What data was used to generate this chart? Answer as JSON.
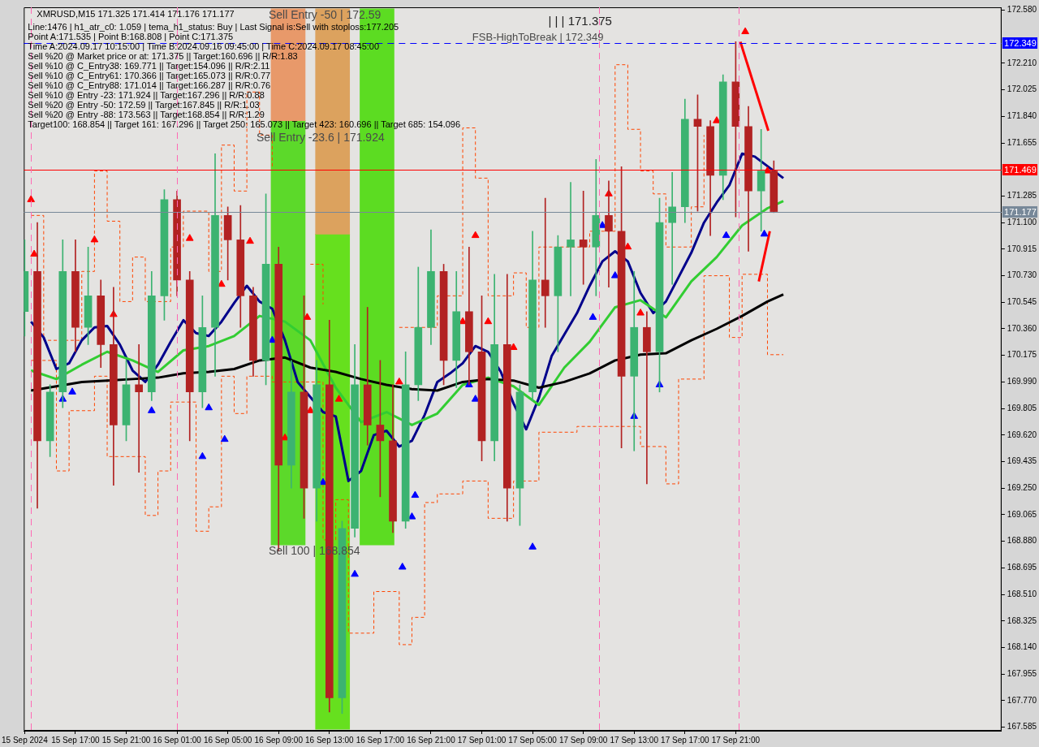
{
  "chart_data": {
    "type": "candlestick",
    "title": "XMRUSD,M15 171.325 171.414 171.176 171.177",
    "subtitle": "Line:1476 | h1_atr_c0: 1.059 | tema_h1_status: Buy | Last Signal is:Sell with stoploss:177.205\nPoint A:171.535 | Point B:168.808 | Point C:171.375\nTime A:2024.09.17 10:15:00 | Time B:2024.09.16 09:45:00 | Time C:2024.09.17 08:45:00\nSell %20 @ Market price or at: 171.375 || Target:160.696 || R/R:1.83\nSell %10 @ C_Entry38: 169.771 || Target:154.096 || R/R:2.11\nSell %10 @ C_Entry61: 170.366 || Target:165.073 || R/R:0.77\nSell %10 @ C_Entry88: 171.014 || Target:166.287 || R/R:0.76\nSell %10 @ Entry -23: 171.924 || Target:167.296 || R/R:0.88\nSell %20 @ Entry -50: 172.59 || Target:167.845 || R/R:1.03\nSell %20 @ Entry -88: 173.563 || Target:168.854 || R/R:1.29\nTarget100: 168.854 || Target 161: 167.296 || Target 250: 165.073 || Target 423: 160.696 || Target 685: 154.096",
    "annotations": [
      {
        "text": "Sell Entry -50 | 172.59",
        "x": "2024-09-16T09:45",
        "y": 172.59
      },
      "Sell Entry -23.6 | 171.924",
      {
        "text": "Sell 100 | 168.854",
        "x": "2024-09-16T09:45",
        "y": 168.854
      },
      "| | | 171.375",
      {
        "text": "FSB-HighToBreak | 172.349",
        "y": 172.349
      }
    ],
    "x": [
      "2024-09-15T13:00",
      "2024-09-15T14:00",
      "2024-09-15T15:00",
      "2024-09-15T16:00",
      "2024-09-15T17:00",
      "2024-09-15T18:00",
      "2024-09-15T19:00",
      "2024-09-15T20:00",
      "2024-09-15T21:00",
      "2024-09-15T22:00",
      "2024-09-15T23:00",
      "2024-09-16T00:00",
      "2024-09-16T01:00",
      "2024-09-16T02:00",
      "2024-09-16T03:00",
      "2024-09-16T04:00",
      "2024-09-16T05:00",
      "2024-09-16T06:00",
      "2024-09-16T07:00",
      "2024-09-16T08:00",
      "2024-09-16T09:00",
      "2024-09-16T10:00",
      "2024-09-16T11:00",
      "2024-09-16T12:00",
      "2024-09-16T13:00",
      "2024-09-16T14:00",
      "2024-09-16T15:00",
      "2024-09-16T16:00",
      "2024-09-16T17:00",
      "2024-09-16T18:00",
      "2024-09-16T19:00",
      "2024-09-16T20:00",
      "2024-09-16T21:00",
      "2024-09-16T22:00",
      "2024-09-16T23:00",
      "2024-09-17T00:00",
      "2024-09-17T01:00",
      "2024-09-17T02:00",
      "2024-09-17T03:00",
      "2024-09-17T04:00",
      "2024-09-17T05:00",
      "2024-09-17T06:00",
      "2024-09-17T07:00",
      "2024-09-17T08:00",
      "2024-09-17T09:00",
      "2024-09-17T10:00",
      "2024-09-17T11:00",
      "2024-09-17T12:00",
      "2024-09-17T13:00",
      "2024-09-17T14:00",
      "2024-09-17T15:00",
      "2024-09-17T16:00",
      "2024-09-17T17:00",
      "2024-09-17T18:00",
      "2024-09-17T19:00",
      "2024-09-17T20:00",
      "2024-09-17T21:00",
      "2024-09-17T22:00",
      "2024-09-17T23:00",
      "2024-09-18T00:00"
    ],
    "ohlc": [
      [
        170.48,
        170.98,
        170.31,
        170.76
      ],
      [
        170.76,
        171.1,
        169.11,
        169.58
      ],
      [
        169.58,
        169.97,
        169.47,
        169.92
      ],
      [
        169.92,
        170.98,
        169.81,
        170.76
      ],
      [
        170.76,
        170.98,
        170.2,
        170.37
      ],
      [
        170.37,
        170.93,
        170.25,
        170.59
      ],
      [
        170.59,
        170.7,
        170.09,
        170.25
      ],
      [
        170.25,
        170.65,
        169.27,
        169.69
      ],
      [
        169.69,
        170.14,
        169.58,
        169.97
      ],
      [
        169.97,
        170.25,
        169.36,
        169.92
      ],
      [
        169.92,
        170.76,
        169.86,
        170.59
      ],
      [
        170.59,
        171.33,
        170.42,
        171.26
      ],
      [
        171.26,
        171.32,
        170.59,
        170.7
      ],
      [
        170.7,
        170.76,
        169.58,
        169.92
      ],
      [
        169.92,
        170.59,
        169.81,
        170.37
      ],
      [
        170.37,
        171.58,
        170.03,
        171.15
      ],
      [
        171.15,
        171.21,
        170.7,
        170.98
      ],
      [
        170.98,
        171.22,
        170.37,
        170.59
      ],
      [
        170.59,
        170.65,
        170.03,
        170.14
      ],
      [
        170.14,
        171.3,
        169.97,
        170.81
      ],
      [
        170.81,
        170.93,
        168.81,
        169.41
      ],
      [
        169.41,
        170.14,
        169.25,
        169.92
      ],
      [
        169.92,
        170.59,
        169.04,
        169.25
      ],
      [
        169.25,
        170.14,
        169.02,
        169.97
      ],
      [
        169.97,
        170.42,
        167.69,
        167.79
      ],
      [
        167.79,
        169.02,
        167.68,
        168.97
      ],
      [
        168.97,
        170.25,
        168.91,
        169.97
      ],
      [
        169.97,
        170.51,
        169.55,
        169.69
      ],
      [
        169.69,
        170.14,
        169.19,
        169.58
      ],
      [
        169.58,
        169.97,
        168.94,
        169.02
      ],
      [
        169.02,
        170.2,
        168.97,
        169.97
      ],
      [
        169.97,
        170.79,
        169.86,
        170.37
      ],
      [
        170.37,
        171.05,
        170.25,
        170.76
      ],
      [
        170.76,
        170.81,
        169.97,
        170.14
      ],
      [
        170.14,
        170.76,
        169.95,
        170.48
      ],
      [
        170.48,
        170.93,
        169.97,
        170.2
      ],
      [
        170.2,
        170.59,
        169.44,
        169.58
      ],
      [
        169.58,
        170.74,
        169.44,
        170.25
      ],
      [
        170.25,
        170.74,
        169.02,
        169.25
      ],
      [
        169.25,
        169.97,
        168.99,
        169.92
      ],
      [
        169.92,
        171.04,
        169.86,
        170.7
      ],
      [
        170.7,
        171.27,
        170.37,
        170.59
      ],
      [
        170.59,
        171.01,
        170.2,
        170.93
      ],
      [
        170.93,
        171.38,
        170.59,
        170.98
      ],
      [
        170.98,
        171.32,
        170.67,
        170.93
      ],
      [
        170.93,
        171.54,
        170.59,
        171.15
      ],
      [
        171.15,
        171.39,
        170.65,
        171.04
      ],
      [
        171.04,
        171.49,
        169.53,
        170.03
      ],
      [
        170.03,
        170.76,
        169.51,
        170.37
      ],
      [
        170.37,
        170.48,
        169.28,
        170.2
      ],
      [
        170.2,
        171.27,
        169.92,
        171.1
      ],
      [
        171.1,
        171.45,
        170.67,
        171.21
      ],
      [
        171.21,
        171.96,
        171.1,
        171.82
      ],
      [
        171.82,
        171.99,
        171.18,
        171.77
      ],
      [
        171.77,
        171.81,
        171.01,
        171.43
      ],
      [
        171.43,
        172.13,
        171.26,
        172.08
      ],
      [
        172.08,
        172.36,
        171.14,
        171.77
      ],
      [
        171.77,
        171.91,
        170.9,
        171.32
      ],
      [
        171.32,
        171.75,
        171.04,
        171.46
      ],
      [
        171.46,
        171.53,
        171.17,
        171.177
      ]
    ],
    "colors": [
      "#3cb371",
      "#b22222",
      "#3cb371",
      "#3cb371",
      "#b22222",
      "#3cb371",
      "#b22222",
      "#b22222",
      "#3cb371",
      "#b22222",
      "#3cb371",
      "#3cb371",
      "#b22222",
      "#b22222",
      "#3cb371",
      "#3cb371",
      "#b22222",
      "#b22222",
      "#b22222",
      "#3cb371",
      "#b22222",
      "#3cb371",
      "#b22222",
      "#3cb371",
      "#b22222",
      "#3cb371",
      "#3cb371",
      "#b22222",
      "#b22222",
      "#b22222",
      "#3cb371",
      "#3cb371",
      "#3cb371",
      "#b22222",
      "#3cb371",
      "#b22222",
      "#b22222",
      "#3cb371",
      "#b22222",
      "#3cb371",
      "#3cb371",
      "#b22222",
      "#3cb371",
      "#3cb371",
      "#b22222",
      "#3cb371",
      "#b22222",
      "#b22222",
      "#3cb371",
      "#b22222",
      "#3cb371",
      "#3cb371",
      "#3cb371",
      "#b22222",
      "#b22222",
      "#3cb371",
      "#b22222",
      "#b22222",
      "#3cb371",
      "#b22222"
    ],
    "series": [
      {
        "type": "bar",
        "x": [
          "2024-09-16T09:45",
          "2024-09-16T13:15"
        ],
        "base": [
          171.81,
          171.02
        ],
        "values": [
          0.78,
          1.57
        ],
        "colors": [
          "#e8996a",
          "#dca25e"
        ]
      },
      {
        "type": "bar",
        "x": [
          "2024-09-16T09:45",
          "2024-09-16T13:15",
          "2024-09-16T16:45"
        ],
        "base": [
          168.854,
          167.57,
          168.854
        ],
        "values": [
          2.956,
          3.45,
          3.736
        ],
        "colors": [
          "#5cd92a",
          "#66e01e",
          "#5cdc22"
        ]
      },
      {
        "type": "step",
        "color": "#ff4500",
        "line_style": "dashed",
        "x": [
          "2024-09-15T13:30",
          "2024-09-15T14:30",
          "2024-09-15T17:30",
          "2024-09-15T18:30",
          "2024-09-15T19:30",
          "2024-09-15T20:30",
          "2024-09-15T21:30",
          "2024-09-15T22:30",
          "2024-09-16T00:30",
          "2024-09-16T01:30",
          "2024-09-16T03:30",
          "2024-09-16T04:30",
          "2024-09-16T05:30",
          "2024-09-16T06:30",
          "2024-09-16T07:30",
          "2024-09-16T08:30",
          "2024-09-16T10:30",
          "2024-09-16T11:30",
          "2024-09-16T12:30",
          "2024-09-16T13:30",
          "2024-09-16T18:30",
          "2024-09-16T21:30",
          "2024-09-16T23:30",
          "2024-09-17T00:30",
          "2024-09-17T01:30",
          "2024-09-17T03:30",
          "2024-09-17T04:30",
          "2024-09-17T05:30",
          "2024-09-17T09:30",
          "2024-09-17T11:30",
          "2024-09-17T12:30",
          "2024-09-17T13:30",
          "2024-09-17T14:30",
          "2024-09-17T15:30",
          "2024-09-17T17:30",
          "2024-09-17T18:30"
        ],
        "values": [
          171.15,
          170.28,
          170.76,
          171.46,
          171.11,
          170.55,
          170.86,
          170.55,
          170.93,
          171.18,
          170.76,
          171.64,
          171.32,
          172.01,
          171.71,
          171.49,
          null,
          170.81,
          170.53,
          null,
          170.37,
          170.59,
          171.76,
          171.41,
          170.59,
          170.75,
          170.37,
          170.93,
          171.04,
          172.2,
          171.75,
          171.46,
          171.3,
          170.93,
          171.21,
          171.71
        ]
      },
      {
        "type": "step",
        "color": "#ff4500",
        "line_style": "dashed",
        "x": [
          "2024-09-15T13:30",
          "2024-09-15T15:30",
          "2024-09-15T16:30",
          "2024-09-15T18:30",
          "2024-09-15T19:30",
          "2024-09-15T22:30",
          "2024-09-15T23:30",
          "2024-09-16T00:30",
          "2024-09-16T02:30",
          "2024-09-16T03:30",
          "2024-09-16T04:30",
          "2024-09-16T05:30",
          "2024-09-16T06:30",
          "2024-09-16T08:30",
          "2024-09-16T12:30",
          "2024-09-16T13:30",
          "2024-09-16T14:30",
          "2024-09-16T16:30",
          "2024-09-16T18:30",
          "2024-09-16T19:30",
          "2024-09-16T20:30",
          "2024-09-16T21:30",
          "2024-09-16T23:30",
          "2024-09-17T01:30",
          "2024-09-17T03:30",
          "2024-09-17T05:30",
          "2024-09-17T08:30",
          "2024-09-17T13:30",
          "2024-09-17T15:30",
          "2024-09-17T16:30",
          "2024-09-17T18:30",
          "2024-09-17T20:30",
          "2024-09-17T21:30",
          "2024-09-17T23:30",
          "2024-09-18T00:45"
        ],
        "values": [
          170.14,
          169.37,
          169.79,
          170.03,
          169.47,
          169.06,
          169.37,
          169.85,
          168.95,
          169.12,
          170.03,
          169.77,
          170.03,
          169.99,
          168.89,
          169.17,
          168.24,
          168.53,
          168.16,
          168.35,
          169.15,
          169.21,
          169.3,
          169.04,
          169.3,
          169.64,
          169.68,
          169.54,
          169.28,
          170.01,
          170.73,
          170.3,
          170.74,
          170.18,
          170.18
        ]
      },
      {
        "type": "line",
        "color": "#000000",
        "x": [
          "2024-09-15T13:30",
          "2024-09-15T15:30",
          "2024-09-15T17:30",
          "2024-09-15T19:30",
          "2024-09-15T21:30",
          "2024-09-15T23:30",
          "2024-09-16T01:30",
          "2024-09-16T03:30",
          "2024-09-16T05:30",
          "2024-09-16T07:30",
          "2024-09-16T09:30",
          "2024-09-16T11:30",
          "2024-09-16T13:30",
          "2024-09-16T15:30",
          "2024-09-16T17:30",
          "2024-09-16T19:30",
          "2024-09-16T21:30",
          "2024-09-16T23:30",
          "2024-09-17T01:30",
          "2024-09-17T03:30",
          "2024-09-17T05:30",
          "2024-09-17T07:30",
          "2024-09-17T09:30",
          "2024-09-17T11:30",
          "2024-09-17T13:30",
          "2024-09-17T15:30",
          "2024-09-17T17:30",
          "2024-09-17T19:30",
          "2024-09-17T21:30",
          "2024-09-17T23:30",
          "2024-09-18T00:45"
        ],
        "values": [
          169.93,
          169.96,
          169.99,
          170.0,
          170.01,
          170.02,
          170.05,
          170.06,
          170.08,
          170.14,
          170.16,
          170.09,
          170.06,
          170.01,
          169.97,
          169.94,
          169.93,
          169.99,
          170.01,
          170.0,
          169.95,
          169.99,
          170.05,
          170.14,
          170.18,
          170.19,
          170.28,
          170.36,
          170.45,
          170.55,
          170.6
        ]
      },
      {
        "type": "line",
        "color": "#32cd32",
        "x": [
          "2024-09-15T13:30",
          "2024-09-15T15:30",
          "2024-09-15T17:30",
          "2024-09-15T19:30",
          "2024-09-15T21:30",
          "2024-09-15T23:30",
          "2024-09-16T01:30",
          "2024-09-16T03:30",
          "2024-09-16T05:30",
          "2024-09-16T07:30",
          "2024-09-16T09:30",
          "2024-09-16T11:30",
          "2024-09-16T13:30",
          "2024-09-16T15:30",
          "2024-09-16T17:30",
          "2024-09-16T19:30",
          "2024-09-16T21:30",
          "2024-09-16T23:30",
          "2024-09-17T01:30",
          "2024-09-17T03:30",
          "2024-09-17T05:30",
          "2024-09-17T07:30",
          "2024-09-17T09:30",
          "2024-09-17T11:30",
          "2024-09-17T13:30",
          "2024-09-17T15:30",
          "2024-09-17T17:30",
          "2024-09-17T19:30",
          "2024-09-17T21:30",
          "2024-09-17T23:30",
          "2024-09-18T00:45"
        ],
        "values": [
          170.07,
          170.01,
          170.11,
          170.2,
          170.14,
          170.06,
          170.21,
          170.24,
          170.31,
          170.45,
          170.41,
          170.28,
          169.95,
          169.71,
          169.78,
          169.69,
          169.77,
          169.97,
          170.02,
          169.96,
          169.83,
          170.09,
          170.27,
          170.51,
          170.56,
          170.44,
          170.69,
          170.86,
          171.08,
          171.2,
          171.25
        ]
      },
      {
        "type": "line",
        "color": "#00008b",
        "x": [
          "2024-09-15T13:30",
          "2024-09-15T14:30",
          "2024-09-15T15:30",
          "2024-09-15T16:30",
          "2024-09-15T17:30",
          "2024-09-15T18:30",
          "2024-09-15T19:30",
          "2024-09-15T20:30",
          "2024-09-15T21:30",
          "2024-09-15T22:30",
          "2024-09-15T23:30",
          "2024-09-16T00:30",
          "2024-09-16T01:30",
          "2024-09-16T02:30",
          "2024-09-16T03:30",
          "2024-09-16T04:30",
          "2024-09-16T05:30",
          "2024-09-16T06:30",
          "2024-09-16T07:30",
          "2024-09-16T08:30",
          "2024-09-16T09:30",
          "2024-09-16T10:30",
          "2024-09-16T12:30",
          "2024-09-16T13:30",
          "2024-09-16T14:30",
          "2024-09-16T15:30",
          "2024-09-16T16:30",
          "2024-09-16T17:30",
          "2024-09-16T18:30",
          "2024-09-16T19:30",
          "2024-09-16T20:30",
          "2024-09-16T21:30",
          "2024-09-16T22:30",
          "2024-09-16T23:30",
          "2024-09-17T00:30",
          "2024-09-17T01:30",
          "2024-09-17T02:30",
          "2024-09-17T03:30",
          "2024-09-17T04:30",
          "2024-09-17T05:30",
          "2024-09-17T06:30",
          "2024-09-17T07:30",
          "2024-09-17T08:30",
          "2024-09-17T09:30",
          "2024-09-17T10:30",
          "2024-09-17T11:30",
          "2024-09-17T12:30",
          "2024-09-17T13:30",
          "2024-09-17T14:30",
          "2024-09-17T15:30",
          "2024-09-17T16:30",
          "2024-09-17T17:30",
          "2024-09-17T18:30",
          "2024-09-17T19:30",
          "2024-09-17T20:30",
          "2024-09-17T21:30",
          "2024-09-17T22:30",
          "2024-09-18T00:45"
        ],
        "values": [
          170.41,
          170.3,
          170.08,
          170.12,
          170.28,
          170.37,
          170.38,
          170.25,
          170.07,
          169.99,
          170.11,
          170.27,
          170.42,
          170.33,
          170.31,
          170.41,
          170.54,
          170.66,
          170.55,
          170.5,
          170.28,
          169.99,
          169.78,
          169.75,
          169.3,
          169.37,
          169.62,
          169.65,
          169.54,
          169.58,
          169.76,
          169.99,
          170.05,
          170.12,
          170.24,
          170.2,
          170.06,
          169.84,
          169.66,
          169.88,
          170.17,
          170.32,
          170.47,
          170.66,
          170.83,
          170.9,
          170.83,
          170.61,
          170.47,
          170.55,
          170.72,
          170.89,
          171.1,
          171.24,
          171.36,
          171.58,
          171.56,
          171.41
        ]
      },
      {
        "type": "line",
        "color": "#ff0000",
        "x": [
          "2024-09-17T21:22",
          "2024-09-17T23:34"
        ],
        "values": [
          172.36,
          171.74
        ]
      },
      {
        "type": "line",
        "color": "#ff0000",
        "x": [
          "2024-09-17T22:49",
          "2024-09-17T23:41"
        ],
        "values": [
          170.69,
          171.04
        ]
      },
      {
        "type": "scatter",
        "color": "#0000ff",
        "marker": "triangle",
        "x": [
          "2024-09-15T16:00",
          "2024-09-15T16:45",
          "2024-09-15T23:00",
          "2024-09-16T03:00",
          "2024-09-16T03:30",
          "2024-09-16T04:45",
          "2024-09-16T08:30",
          "2024-09-16T12:30",
          "2024-09-16T15:00",
          "2024-09-16T18:45",
          "2024-09-16T19:30",
          "2024-09-16T19:45",
          "2024-09-17T00:00",
          "2024-09-17T00:30",
          "2024-09-17T05:00",
          "2024-09-17T09:45",
          "2024-09-17T10:30",
          "2024-09-17T11:30",
          "2024-09-17T13:00",
          "2024-09-17T15:00",
          "2024-09-17T20:15",
          "2024-09-17T23:15"
        ],
        "values": [
          169.87,
          169.92,
          169.79,
          169.47,
          169.81,
          169.59,
          170.28,
          169.29,
          168.65,
          168.7,
          169.05,
          169.2,
          169.97,
          169.87,
          168.84,
          170.44,
          171.08,
          170.73,
          169.75,
          169.97,
          171.01,
          171.02
        ]
      },
      {
        "type": "scatter",
        "color": "#ff0000",
        "marker": "triangle",
        "x": [
          "2024-09-15T13:30",
          "2024-09-15T13:45",
          "2024-09-15T18:30",
          "2024-09-15T20:00",
          "2024-09-16T02:00",
          "2024-09-16T04:30",
          "2024-09-16T06:45",
          "2024-09-16T09:30",
          "2024-09-16T11:15",
          "2024-09-16T11:30",
          "2024-09-16T13:45",
          "2024-09-16T18:30",
          "2024-09-16T23:30",
          "2024-09-17T00:30",
          "2024-09-17T01:30",
          "2024-09-17T03:30",
          "2024-09-17T11:00",
          "2024-09-17T12:30",
          "2024-09-17T13:30",
          "2024-09-17T19:30",
          "2024-09-17T21:45",
          "2024-09-17T23:30"
        ],
        "values": [
          171.26,
          170.88,
          170.98,
          170.46,
          170.99,
          170.67,
          170.97,
          169.6,
          170.44,
          169.79,
          169.87,
          169.99,
          170.41,
          171.01,
          170.41,
          170.23,
          171.3,
          170.93,
          170.47,
          171.81,
          172.43,
          171.46
        ]
      }
    ],
    "xlim": [
      "2024-09-15T12:56",
      "2024-09-18T17:56"
    ],
    "xticks": [
      {
        "value": "2024-09-15T13:00",
        "label": "15 Sep 2024"
      },
      {
        "value": "2024-09-15T17:00",
        "label": "15 Sep 17:00"
      },
      {
        "value": "2024-09-15T21:00",
        "label": "15 Sep 21:00"
      },
      {
        "value": "2024-09-16T01:00",
        "label": "16 Sep 01:00"
      },
      {
        "value": "2024-09-16T05:00",
        "label": "16 Sep 05:00"
      },
      {
        "value": "2024-09-16T09:00",
        "label": "16 Sep 09:00"
      },
      {
        "value": "2024-09-16T13:00",
        "label": "16 Sep 13:00"
      },
      {
        "value": "2024-09-16T17:00",
        "label": "16 Sep 17:00"
      },
      {
        "value": "2024-09-16T21:00",
        "label": "16 Sep 21:00"
      },
      {
        "value": "2024-09-17T01:00",
        "label": "17 Sep 01:00"
      },
      {
        "value": "2024-09-17T05:00",
        "label": "17 Sep 05:00"
      },
      {
        "value": "2024-09-17T09:00",
        "label": "17 Sep 09:00"
      },
      {
        "value": "2024-09-17T13:00",
        "label": "17 Sep 13:00"
      },
      {
        "value": "2024-09-17T17:00",
        "label": "17 Sep 17:00"
      },
      {
        "value": "2024-09-17T21:00",
        "label": "17 Sep 21:00"
      }
    ],
    "ylim": [
      167.56,
      172.6
    ],
    "yticks": [
      {
        "value": 172.58,
        "label": "172.580"
      },
      {
        "value": 172.21,
        "label": "172.210"
      },
      {
        "value": 172.025,
        "label": "172.025"
      },
      {
        "value": 171.84,
        "label": "171.840"
      },
      {
        "value": 171.655,
        "label": "171.655"
      },
      {
        "value": 171.285,
        "label": "171.285"
      },
      {
        "value": 171.1,
        "label": "171.100"
      },
      {
        "value": 170.915,
        "label": "170.915"
      },
      {
        "value": 170.73,
        "label": "170.730"
      },
      {
        "value": 170.545,
        "label": "170.545"
      },
      {
        "value": 170.36,
        "label": "170.360"
      },
      {
        "value": 170.175,
        "label": "170.175"
      },
      {
        "value": 169.99,
        "label": "169.990"
      },
      {
        "value": 169.805,
        "label": "169.805"
      },
      {
        "value": 169.62,
        "label": "169.620"
      },
      {
        "value": 169.435,
        "label": "169.435"
      },
      {
        "value": 169.25,
        "label": "169.250"
      },
      {
        "value": 169.065,
        "label": "169.065"
      },
      {
        "value": 168.88,
        "label": "168.880"
      },
      {
        "value": 168.695,
        "label": "168.695"
      },
      {
        "value": 168.51,
        "label": "168.510"
      },
      {
        "value": 168.325,
        "label": "168.325"
      },
      {
        "value": 168.14,
        "label": "168.140"
      },
      {
        "value": 167.955,
        "label": "167.955"
      },
      {
        "value": 167.77,
        "label": "167.770"
      },
      {
        "value": 167.585,
        "label": "167.585"
      }
    ],
    "ref_lines": [
      {
        "axis": "y",
        "value": 172.349,
        "label": "172.349",
        "color": "#0000ff",
        "line_style": "dashed"
      },
      {
        "axis": "y",
        "value": 171.469,
        "label": "171.469",
        "color": "#ff0000"
      },
      {
        "axis": "y",
        "value": 171.177,
        "label": "171.177",
        "color": "#778899"
      },
      {
        "axis": "x",
        "value": "2024-09-15T13:30",
        "color": "#ff69b4",
        "line_style": "dashed"
      },
      {
        "axis": "x",
        "value": "2024-09-16T01:00",
        "color": "#ff69b4",
        "line_style": "dashed"
      },
      {
        "axis": "x",
        "value": "2024-09-17T10:15",
        "color": "#ff69b4",
        "line_style": "dashed"
      },
      {
        "axis": "x",
        "value": "2024-09-17T21:15",
        "color": "#ff69b4",
        "line_style": "dashed"
      }
    ]
  }
}
